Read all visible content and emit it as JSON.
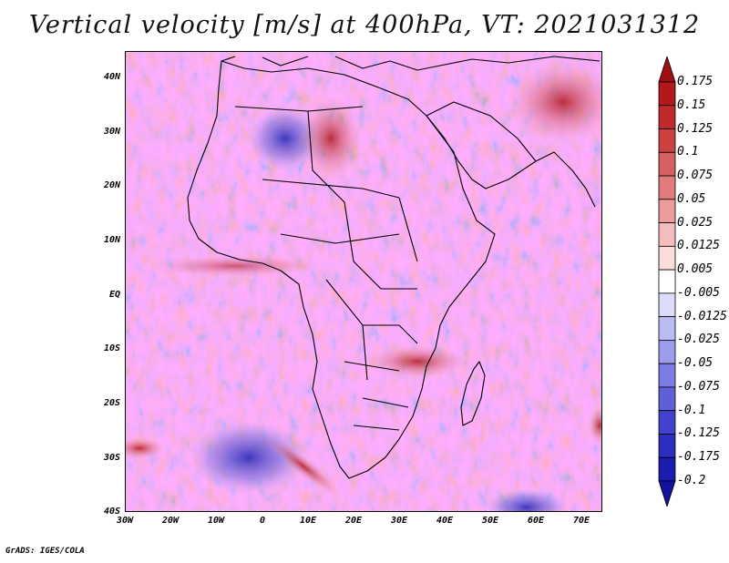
{
  "title": "Vertical velocity [m/s] at 400hPa, VT: 2021031312",
  "footer": "GrADS: IGES/COLA",
  "map": {
    "lat_labels": [
      "40N",
      "30N",
      "20N",
      "10N",
      "EQ",
      "10S",
      "20S",
      "30S",
      "40S"
    ],
    "lon_labels": [
      "30W",
      "20W",
      "10W",
      "0",
      "10E",
      "20E",
      "30E",
      "40E",
      "50E",
      "60E",
      "70E"
    ],
    "lat_range": [
      -40,
      45
    ],
    "lon_range": [
      -30,
      75
    ]
  },
  "colorbar": {
    "labels": [
      "0.175",
      "0.15",
      "0.125",
      "0.1",
      "0.075",
      "0.05",
      "0.025",
      "0.0125",
      "0.005",
      "-0.005",
      "-0.0125",
      "-0.025",
      "-0.05",
      "-0.075",
      "-0.1",
      "-0.125",
      "-0.175",
      "-0.2"
    ],
    "colors": [
      "#9e0e14",
      "#b2181c",
      "#c02a2d",
      "#cc4242",
      "#d85f5f",
      "#e27c7c",
      "#ec9c9c",
      "#f4bcbc",
      "#fadcdc",
      "#ffffff",
      "#dcdcfa",
      "#bcbcf4",
      "#9c9cec",
      "#7c7ce2",
      "#5f5fd8",
      "#4242cc",
      "#2d2dc0",
      "#1c1cb0",
      "#12129e"
    ]
  }
}
